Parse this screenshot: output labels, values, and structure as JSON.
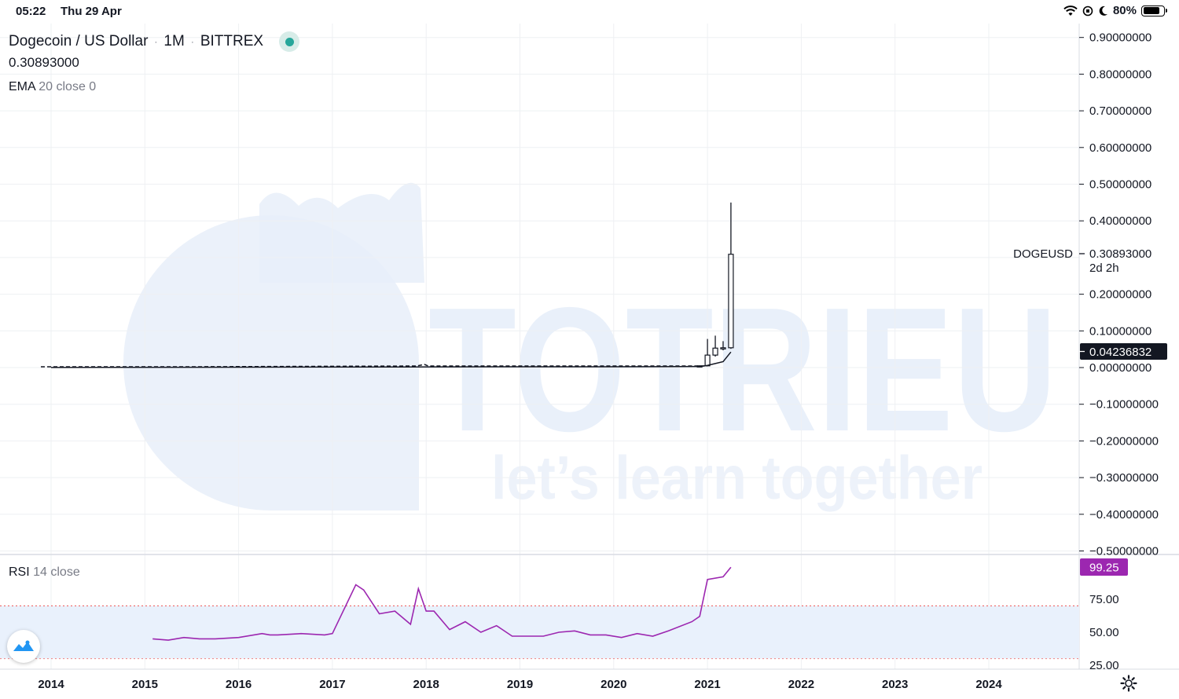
{
  "status_bar": {
    "time": "05:22",
    "date": "Thu 29 Apr",
    "battery": "80%"
  },
  "legend": {
    "symbol": "Dogecoin / US Dollar",
    "interval": "1M",
    "exchange": "BITTREX",
    "price": "0.30893000",
    "ema_name": "EMA",
    "ema_params": "20 close 0",
    "rsi_name": "RSI",
    "rsi_params": "14 close"
  },
  "price_axis": {
    "ticks": [
      "0.90000000",
      "0.80000000",
      "0.70000000",
      "0.60000000",
      "0.50000000",
      "0.40000000",
      "0.20000000",
      "0.10000000",
      "0.00000000",
      "−0.10000000",
      "−0.20000000",
      "−0.30000000",
      "−0.40000000",
      "−0.50000000"
    ],
    "last_symbol": "DOGEUSD",
    "last_price": "0.30893000",
    "countdown": "2d 2h",
    "ema_value": "0.04236832"
  },
  "rsi_axis": {
    "ticks": [
      "75.00",
      "50.00",
      "25.00"
    ],
    "value": "99.25"
  },
  "time_axis": {
    "years": [
      "2014",
      "2015",
      "2016",
      "2017",
      "2018",
      "2019",
      "2020",
      "2021",
      "2022",
      "2023",
      "2024"
    ]
  },
  "watermark": {
    "brand": "TOTRIEU",
    "tagline": "let’s learn together"
  },
  "colors": {
    "rsi_line": "#9c27b0",
    "rsi_band": "#e9f1fc",
    "ema_label_bg": "#131722",
    "live_dot": "#26a69a"
  },
  "chart_data": [
    {
      "type": "candlestick",
      "title": "Dogecoin / US Dollar",
      "interval": "1M",
      "ylim": [
        -0.5,
        0.9
      ],
      "candles": [
        {
          "date": "2020-12",
          "open": 0.0046,
          "high": 0.0058,
          "low": 0.0043,
          "close": 0.0047
        },
        {
          "date": "2021-01",
          "open": 0.0047,
          "high": 0.078,
          "low": 0.0045,
          "close": 0.034
        },
        {
          "date": "2021-02",
          "open": 0.034,
          "high": 0.087,
          "low": 0.03,
          "close": 0.053
        },
        {
          "date": "2021-03",
          "open": 0.053,
          "high": 0.072,
          "low": 0.047,
          "close": 0.054
        },
        {
          "date": "2021-04",
          "open": 0.054,
          "high": 0.45,
          "low": 0.051,
          "close": 0.3089
        }
      ],
      "ema": {
        "name": "EMA 20 close",
        "dates": [
          "2014-01",
          "2019-01",
          "2020-06",
          "2020-12",
          "2021-01",
          "2021-02",
          "2021-03",
          "2021-04"
        ],
        "values": [
          0.0002,
          0.0022,
          0.0024,
          0.003,
          0.006,
          0.011,
          0.016,
          0.0424
        ]
      }
    },
    {
      "type": "line",
      "title": "RSI 14 close",
      "ylim": [
        20,
        105
      ],
      "bands": [
        30,
        70
      ],
      "x": [
        "2015-02",
        "2015-04",
        "2015-06",
        "2015-08",
        "2015-10",
        "2016-01",
        "2016-04",
        "2016-05",
        "2016-06",
        "2016-09",
        "2016-12",
        "2017-01",
        "2017-04",
        "2017-05",
        "2017-07",
        "2017-09",
        "2017-11",
        "2017-12",
        "2018-01",
        "2018-02",
        "2018-04",
        "2018-06",
        "2018-08",
        "2018-10",
        "2018-12",
        "2019-02",
        "2019-04",
        "2019-06",
        "2019-08",
        "2019-10",
        "2019-12",
        "2020-02",
        "2020-04",
        "2020-06",
        "2020-08",
        "2020-11",
        "2020-12",
        "2021-01",
        "2021-03",
        "2021-04"
      ],
      "values": [
        45,
        44,
        46,
        45,
        45,
        46,
        49,
        48,
        48,
        49,
        48,
        49,
        86,
        82,
        64,
        66,
        56,
        83,
        66,
        66,
        52,
        58,
        50,
        55,
        47,
        47,
        47,
        50,
        51,
        48,
        48,
        46,
        49,
        47,
        51,
        58,
        62,
        90,
        92,
        99.25
      ]
    }
  ]
}
